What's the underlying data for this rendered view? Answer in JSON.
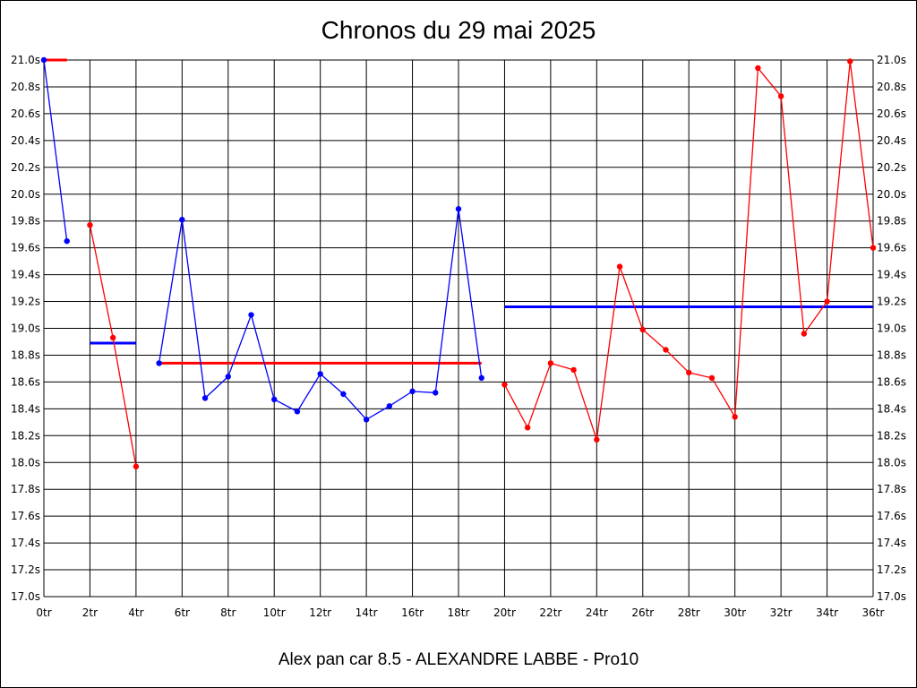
{
  "chart_data": {
    "type": "line",
    "title": "Chronos du 29 mai 2025",
    "subtitle": "Alex pan car 8.5 - ALEXANDRE LABBE - Pro10",
    "xlim": [
      0,
      36
    ],
    "ylim": [
      17.0,
      21.0
    ],
    "grid": true,
    "x_tick_labels": [
      "0tr",
      "2tr",
      "4tr",
      "6tr",
      "8tr",
      "10tr",
      "12tr",
      "14tr",
      "16tr",
      "18tr",
      "20tr",
      "22tr",
      "24tr",
      "26tr",
      "28tr",
      "30tr",
      "32tr",
      "34tr",
      "36tr"
    ],
    "y_tick_labels": [
      "17.0s",
      "17.2s",
      "17.4s",
      "17.6s",
      "17.8s",
      "18.0s",
      "18.2s",
      "18.4s",
      "18.6s",
      "18.8s",
      "19.0s",
      "19.2s",
      "19.4s",
      "19.6s",
      "19.8s",
      "20.0s",
      "20.2s",
      "20.4s",
      "20.6s",
      "20.8s",
      "21.0s"
    ],
    "series": [
      {
        "color": "#0000ff",
        "x": [
          0,
          1
        ],
        "y": [
          21.0,
          19.65
        ]
      },
      {
        "color": "#ff0000",
        "x": [
          2,
          3,
          4
        ],
        "y": [
          19.77,
          18.93,
          17.97
        ]
      },
      {
        "color": "#0000ff",
        "x": [
          5,
          6,
          7,
          8,
          9,
          10,
          11,
          12,
          13,
          14,
          15,
          16,
          17,
          18,
          19
        ],
        "y": [
          18.74,
          19.81,
          18.48,
          18.64,
          19.1,
          18.47,
          18.38,
          18.66,
          18.51,
          18.32,
          18.42,
          18.53,
          18.52,
          19.89,
          18.63
        ]
      },
      {
        "color": "#ff0000",
        "x": [
          20,
          21,
          22,
          23,
          24,
          25,
          26,
          27,
          28,
          29,
          30,
          31,
          32,
          33,
          34,
          35,
          36
        ],
        "y": [
          18.58,
          18.26,
          18.74,
          18.69,
          18.17,
          19.46,
          18.99,
          18.84,
          18.67,
          18.63,
          18.34,
          20.94,
          20.73,
          18.96,
          19.2,
          20.99,
          19.6
        ]
      }
    ],
    "averages": [
      {
        "color": "#ff0000",
        "x": [
          0,
          1
        ],
        "y": 21.0
      },
      {
        "color": "#0000ff",
        "x": [
          2,
          4
        ],
        "y": 18.89
      },
      {
        "color": "#ff0000",
        "x": [
          5,
          19
        ],
        "y": 18.74
      },
      {
        "color": "#0000ff",
        "x": [
          20,
          36
        ],
        "y": 19.16
      }
    ]
  }
}
